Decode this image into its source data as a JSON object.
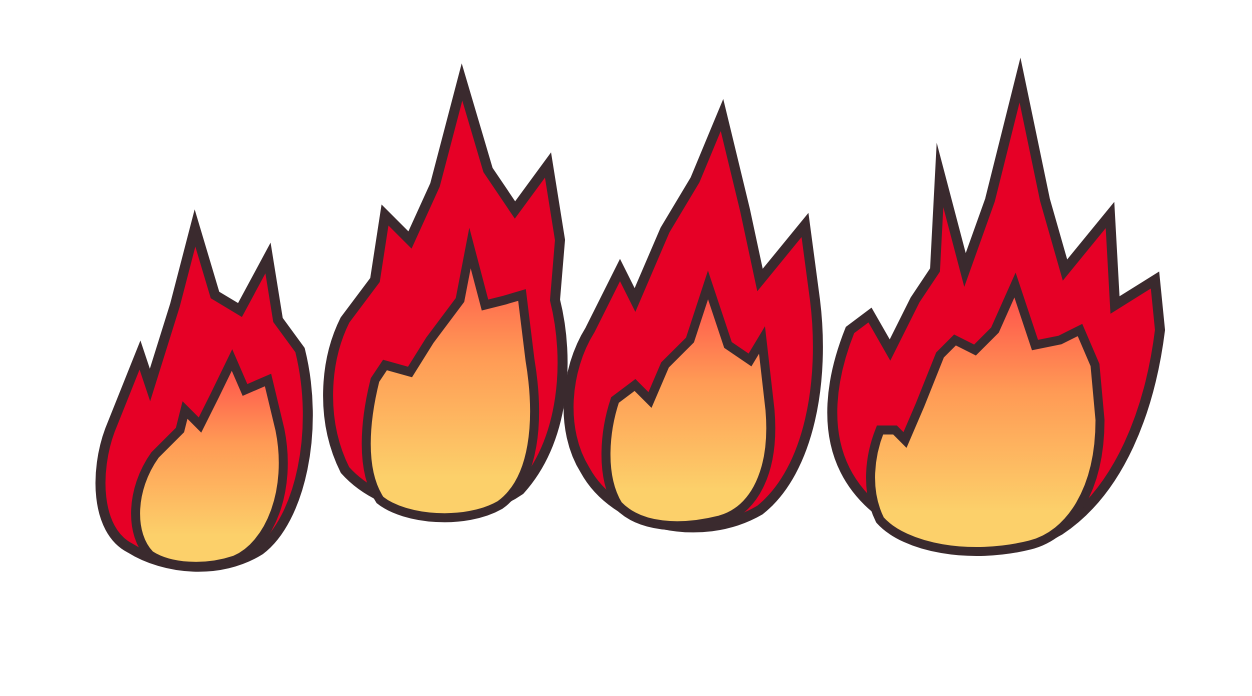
{
  "icon": "fire-icon",
  "flame_count": 4,
  "colors": {
    "outer_fill": "#e60026",
    "inner_top": "#ff4a4a",
    "inner_mid": "#ff9a55",
    "inner_bottom": "#fcd06a",
    "outline": "#3a2a2e",
    "background": "#ffffff"
  }
}
